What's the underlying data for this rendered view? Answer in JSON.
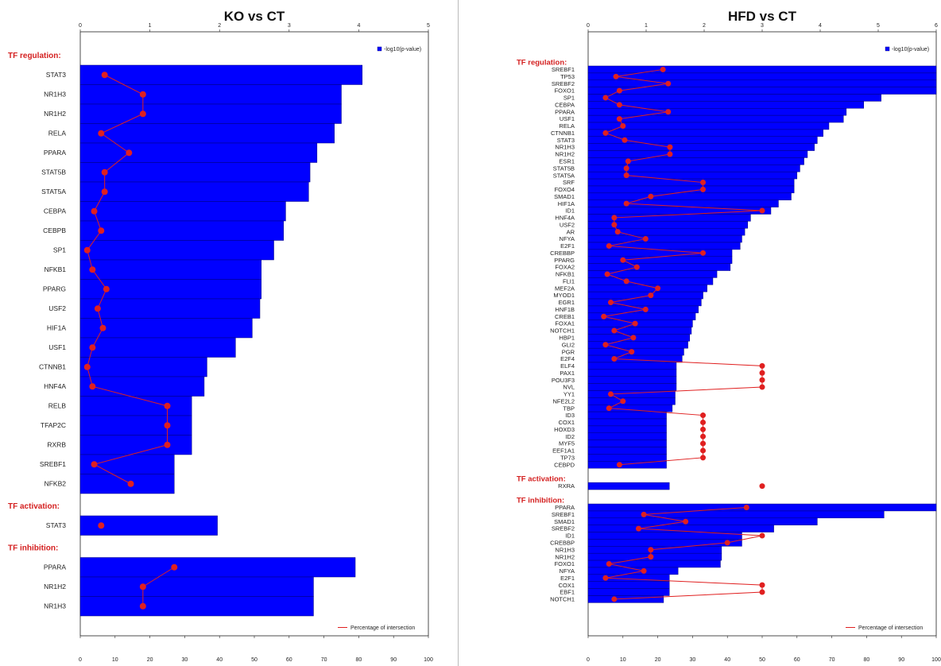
{
  "charts": [
    {
      "type": "bar",
      "orientation": "horizontal",
      "title": "KO vs CT",
      "top_axis": {
        "label": "-log10(p-value)",
        "min": 0,
        "max": 5,
        "ticks": [
          0,
          1,
          2,
          3,
          4,
          5
        ]
      },
      "bottom_axis": {
        "label": "Percentage of intersection",
        "min": 0,
        "max": 100,
        "ticks": [
          0,
          10,
          20,
          30,
          40,
          50,
          60,
          70,
          80,
          90,
          100
        ]
      },
      "legend": {
        "bar_label": "-log10(p-value)",
        "line_label": "Percentage of intersection",
        "bar_position": "top-right",
        "line_position": "bottom-right"
      },
      "colors": {
        "bar": "#0000ff",
        "bar_edge": "#00007a",
        "line": "#e02020",
        "section": "#d42020"
      },
      "sections": [
        {
          "title": "TF regulation:",
          "categories": [
            "STAT3",
            "NR1H3",
            "NR1H2",
            "RELA",
            "PPARA",
            "STAT5B",
            "STAT5A",
            "CEBPA",
            "CEBPB",
            "SP1",
            "NFKB1",
            "PPARG",
            "USF2",
            "HIF1A",
            "USF1",
            "CTNNB1",
            "HNF4A",
            "RELB",
            "TFAP2C",
            "RXRB",
            "SREBF1",
            "NFKB2"
          ],
          "neglog10p": [
            4.05,
            3.75,
            3.75,
            3.65,
            3.4,
            3.3,
            3.28,
            2.95,
            2.92,
            2.78,
            2.6,
            2.6,
            2.58,
            2.47,
            2.23,
            1.82,
            1.78,
            1.6,
            1.6,
            1.6,
            1.35,
            1.35
          ],
          "pct_intersection": [
            7,
            18,
            18,
            6,
            14,
            7,
            7,
            4,
            6,
            2,
            3.5,
            7.5,
            5,
            6.5,
            3.5,
            2,
            3.5,
            25,
            25,
            25,
            4,
            14.5
          ]
        },
        {
          "title": "TF activation:",
          "categories": [
            "STAT3"
          ],
          "neglog10p": [
            1.97
          ],
          "pct_intersection": [
            6
          ]
        },
        {
          "title": "TF inhibition:",
          "categories": [
            "PPARA",
            "NR1H2",
            "NR1H3"
          ],
          "neglog10p": [
            3.95,
            3.35,
            3.35
          ],
          "pct_intersection": [
            27,
            18,
            18
          ]
        }
      ]
    },
    {
      "type": "bar",
      "orientation": "horizontal",
      "title": "HFD vs CT",
      "top_axis": {
        "label": "-log10(p-value)",
        "min": 0,
        "max": 6,
        "ticks": [
          0,
          1,
          2,
          3,
          4,
          5,
          6
        ]
      },
      "bottom_axis": {
        "label": "Percentage of intersection",
        "min": 0,
        "max": 100,
        "ticks": [
          0,
          10,
          20,
          30,
          40,
          50,
          60,
          70,
          80,
          90,
          100
        ]
      },
      "legend": {
        "bar_label": "-log10(p-value)",
        "line_label": "Percentage of intersection",
        "bar_position": "top-right",
        "line_position": "bottom-right"
      },
      "colors": {
        "bar": "#0000ff",
        "bar_edge": "#00007a",
        "line": "#e02020",
        "section": "#d42020"
      },
      "sections": [
        {
          "title": "TF regulation:",
          "categories": [
            "SREBF1",
            "TP53",
            "SREBF2",
            "FOXO1",
            "SP1",
            "CEBPA",
            "PPARA",
            "USF1",
            "RELA",
            "CTNNB1",
            "STAT3",
            "NR1H3",
            "NR1H2",
            "ESR1",
            "STAT5B",
            "STAT5A",
            "SRF",
            "FOXO4",
            "SMAD1",
            "HIF1A",
            "ID1",
            "HNF4A",
            "USF2",
            "AR",
            "NFYA",
            "E2F1",
            "CREBBP",
            "PPARG",
            "FOXA2",
            "NFKB1",
            "FLI1",
            "MEF2A",
            "MYOD1",
            "EGR1",
            "HNF1B",
            "CREB1",
            "FOXA1",
            "NOTCH1",
            "HBP1",
            "GLI2",
            "PGR",
            "E2F4",
            "ELF4",
            "PAX1",
            "POU3F3",
            "NVL",
            "YY1",
            "NFE2L2",
            "TBP",
            "ID3",
            "COX1",
            "HOXD3",
            "ID2",
            "MYF5",
            "EEF1A1",
            "TP73",
            "CEBPD"
          ],
          "neglog10p": [
            6,
            6,
            6,
            6,
            5.05,
            4.75,
            4.45,
            4.4,
            4.15,
            4.05,
            3.95,
            3.9,
            3.78,
            3.72,
            3.65,
            3.6,
            3.55,
            3.55,
            3.5,
            3.28,
            3.15,
            2.8,
            2.75,
            2.7,
            2.65,
            2.62,
            2.48,
            2.48,
            2.45,
            2.22,
            2.15,
            2.05,
            1.98,
            1.95,
            1.9,
            1.85,
            1.8,
            1.78,
            1.75,
            1.72,
            1.65,
            1.62,
            1.52,
            1.52,
            1.52,
            1.52,
            1.5,
            1.5,
            1.45,
            1.35,
            1.35,
            1.35,
            1.35,
            1.35,
            1.35,
            1.35,
            1.35
          ],
          "pct_intersection": [
            21.5,
            8,
            23,
            9,
            5,
            9,
            23,
            9,
            10,
            5,
            10.5,
            23.5,
            23.5,
            11.5,
            11,
            11,
            33,
            33,
            18,
            11,
            50,
            7.5,
            7.5,
            8.5,
            16.5,
            6,
            33,
            10,
            14,
            5.5,
            11,
            20,
            18,
            6.5,
            16.5,
            4.5,
            13.5,
            7.5,
            13,
            5,
            12.5,
            7.5,
            50,
            50,
            50,
            50,
            6.5,
            10,
            6,
            33,
            33,
            33,
            33,
            33,
            33,
            33,
            9
          ]
        },
        {
          "title": "TF activation:",
          "categories": [
            "RXRA"
          ],
          "neglog10p": [
            1.4
          ],
          "pct_intersection": [
            50
          ]
        },
        {
          "title": "TF inhibition:",
          "categories": [
            "PPARA",
            "SREBF1",
            "SMAD1",
            "SREBF2",
            "ID1",
            "CREBBP",
            "NR1H3",
            "NR1H2",
            "FOXO1",
            "NFYA",
            "E2F1",
            "COX1",
            "EBF1",
            "NOTCH1"
          ],
          "neglog10p": [
            6,
            5.1,
            3.95,
            3.2,
            2.65,
            2.65,
            2.3,
            2.3,
            2.28,
            1.55,
            1.4,
            1.4,
            1.4,
            1.3
          ],
          "pct_intersection": [
            45.5,
            16,
            28,
            14.5,
            50,
            40,
            18,
            18,
            6,
            16,
            5,
            50,
            50,
            7.5
          ]
        }
      ]
    }
  ]
}
